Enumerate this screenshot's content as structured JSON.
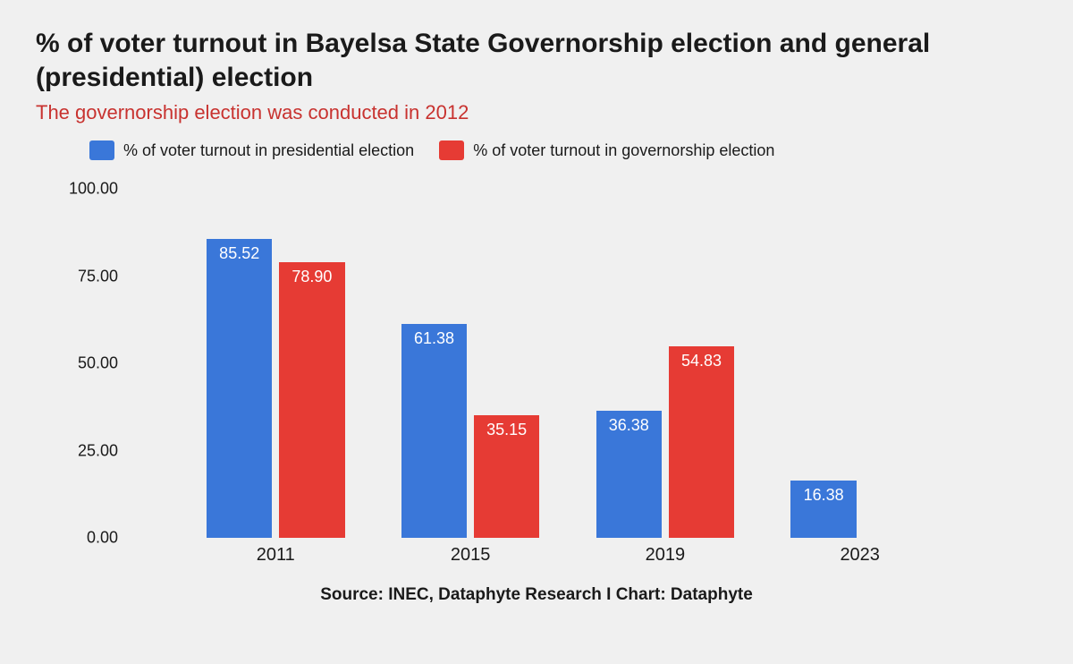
{
  "title": "% of voter turnout in Bayelsa State Governorship election and general (presidential) election",
  "subtitle": "The governorship election was conducted in 2012",
  "subtitle_color": "#c8322f",
  "legend": [
    {
      "label": "% of voter turnout in presidential election",
      "color": "#3a77d9"
    },
    {
      "label": "% of voter turnout in governorship election",
      "color": "#e63b34"
    }
  ],
  "chart": {
    "type": "bar",
    "categories": [
      "2011",
      "2015",
      "2019",
      "2023"
    ],
    "series": [
      {
        "color": "#3a77d9",
        "values": [
          85.52,
          61.38,
          36.38,
          16.38
        ]
      },
      {
        "color": "#e63b34",
        "values": [
          78.9,
          35.15,
          54.83,
          null
        ]
      }
    ],
    "ylim": [
      0,
      100
    ],
    "ytick_step": 25,
    "yticks": [
      "0.00",
      "25.00",
      "50.00",
      "75.00",
      "100.00"
    ],
    "bar_width_pct": 7.4,
    "group_gap_pct": 0.8,
    "background_color": "#f0f0f0",
    "label_fontsize": 18,
    "tick_fontsize": 18
  },
  "source": "Source: INEC, Dataphyte Research I Chart: Dataphyte"
}
